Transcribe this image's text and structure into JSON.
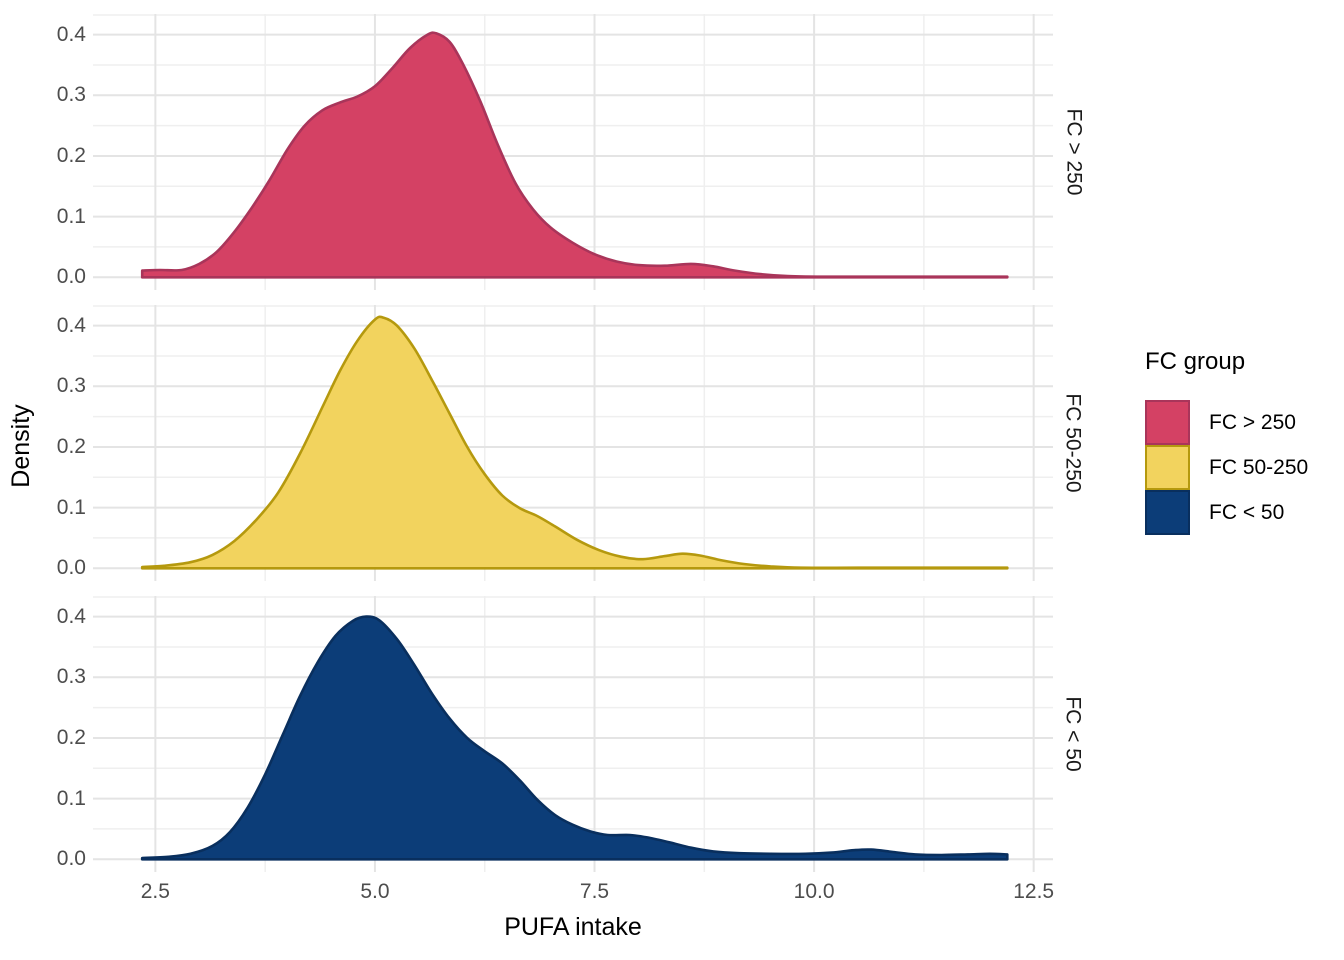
{
  "figure": {
    "y_axis_title": "Density",
    "x_axis_title": "PUFA intake",
    "x_tick_labels": [
      "2.5",
      "5.0",
      "7.5",
      "10.0",
      "12.5"
    ],
    "y_tick_labels": [
      "0.0",
      "0.1",
      "0.2",
      "0.3",
      "0.4"
    ]
  },
  "legend": {
    "title": "FC group",
    "items": [
      {
        "label": "FC > 250"
      },
      {
        "label": "FC 50-250"
      },
      {
        "label": "FC < 50"
      }
    ]
  },
  "chart_data": {
    "type": "area",
    "subtype": "faceted-density",
    "title": "",
    "xlabel": "PUFA intake",
    "ylabel": "Density",
    "xlim": [
      1.79,
      12.72
    ],
    "ylim": [
      -0.021,
      0.434
    ],
    "x_major_ticks": [
      2.5,
      5.0,
      7.5,
      10.0,
      12.5
    ],
    "x_minor_ticks": [
      3.75,
      6.25,
      8.75,
      11.25
    ],
    "y_major_ticks": [
      0.0,
      0.1,
      0.2,
      0.3,
      0.4
    ],
    "y_minor_ticks": [
      0.05,
      0.15,
      0.25,
      0.35
    ],
    "grid": true,
    "legend_position": "right",
    "facet_order_note": "one facet panel per series, top to bottom",
    "series": [
      {
        "name": "FC > 250",
        "fill": "#D44164",
        "stroke": "#A9355A",
        "points": [
          [
            2.35,
            0.011
          ],
          [
            2.55,
            0.012
          ],
          [
            2.8,
            0.012
          ],
          [
            3.0,
            0.022
          ],
          [
            3.2,
            0.042
          ],
          [
            3.4,
            0.075
          ],
          [
            3.6,
            0.115
          ],
          [
            3.8,
            0.16
          ],
          [
            4.0,
            0.21
          ],
          [
            4.2,
            0.25
          ],
          [
            4.4,
            0.275
          ],
          [
            4.6,
            0.288
          ],
          [
            4.8,
            0.298
          ],
          [
            5.0,
            0.315
          ],
          [
            5.2,
            0.345
          ],
          [
            5.4,
            0.378
          ],
          [
            5.6,
            0.4
          ],
          [
            5.7,
            0.402
          ],
          [
            5.85,
            0.388
          ],
          [
            6.0,
            0.352
          ],
          [
            6.2,
            0.29
          ],
          [
            6.4,
            0.218
          ],
          [
            6.6,
            0.155
          ],
          [
            6.8,
            0.112
          ],
          [
            7.0,
            0.082
          ],
          [
            7.25,
            0.057
          ],
          [
            7.5,
            0.038
          ],
          [
            7.75,
            0.026
          ],
          [
            8.0,
            0.02
          ],
          [
            8.3,
            0.019
          ],
          [
            8.6,
            0.022
          ],
          [
            8.85,
            0.018
          ],
          [
            9.1,
            0.011
          ],
          [
            9.4,
            0.005
          ],
          [
            9.7,
            0.002
          ],
          [
            10.2,
            0.001
          ],
          [
            11.0,
            0.001
          ],
          [
            12.2,
            0.001
          ]
        ]
      },
      {
        "name": "FC 50-250",
        "fill": "#F2D35E",
        "stroke": "#B5990E",
        "points": [
          [
            2.35,
            0.002
          ],
          [
            2.6,
            0.004
          ],
          [
            2.9,
            0.01
          ],
          [
            3.15,
            0.022
          ],
          [
            3.4,
            0.045
          ],
          [
            3.65,
            0.08
          ],
          [
            3.9,
            0.125
          ],
          [
            4.15,
            0.19
          ],
          [
            4.4,
            0.265
          ],
          [
            4.6,
            0.325
          ],
          [
            4.8,
            0.375
          ],
          [
            5.0,
            0.41
          ],
          [
            5.1,
            0.413
          ],
          [
            5.25,
            0.4
          ],
          [
            5.45,
            0.362
          ],
          [
            5.65,
            0.31
          ],
          [
            5.85,
            0.255
          ],
          [
            6.05,
            0.2
          ],
          [
            6.25,
            0.155
          ],
          [
            6.45,
            0.12
          ],
          [
            6.65,
            0.099
          ],
          [
            6.85,
            0.086
          ],
          [
            7.05,
            0.069
          ],
          [
            7.3,
            0.047
          ],
          [
            7.55,
            0.03
          ],
          [
            7.8,
            0.019
          ],
          [
            8.05,
            0.015
          ],
          [
            8.3,
            0.02
          ],
          [
            8.5,
            0.024
          ],
          [
            8.7,
            0.021
          ],
          [
            8.95,
            0.013
          ],
          [
            9.2,
            0.007
          ],
          [
            9.5,
            0.003
          ],
          [
            9.85,
            0.001
          ],
          [
            10.5,
            0.001
          ],
          [
            11.4,
            0.001
          ],
          [
            12.2,
            0.001
          ]
        ]
      },
      {
        "name": "FC < 50",
        "fill": "#0C3D78",
        "stroke": "#092F5E",
        "points": [
          [
            2.35,
            0.002
          ],
          [
            2.65,
            0.004
          ],
          [
            2.9,
            0.009
          ],
          [
            3.15,
            0.022
          ],
          [
            3.35,
            0.045
          ],
          [
            3.55,
            0.085
          ],
          [
            3.75,
            0.14
          ],
          [
            3.95,
            0.205
          ],
          [
            4.15,
            0.27
          ],
          [
            4.35,
            0.325
          ],
          [
            4.55,
            0.368
          ],
          [
            4.75,
            0.393
          ],
          [
            4.9,
            0.4
          ],
          [
            5.05,
            0.394
          ],
          [
            5.25,
            0.363
          ],
          [
            5.45,
            0.32
          ],
          [
            5.65,
            0.273
          ],
          [
            5.85,
            0.232
          ],
          [
            6.05,
            0.2
          ],
          [
            6.25,
            0.178
          ],
          [
            6.45,
            0.158
          ],
          [
            6.65,
            0.13
          ],
          [
            6.85,
            0.098
          ],
          [
            7.05,
            0.073
          ],
          [
            7.25,
            0.057
          ],
          [
            7.45,
            0.046
          ],
          [
            7.65,
            0.04
          ],
          [
            7.9,
            0.04
          ],
          [
            8.1,
            0.036
          ],
          [
            8.35,
            0.028
          ],
          [
            8.6,
            0.019
          ],
          [
            8.85,
            0.013
          ],
          [
            9.15,
            0.01
          ],
          [
            9.5,
            0.009
          ],
          [
            9.9,
            0.009
          ],
          [
            10.2,
            0.011
          ],
          [
            10.45,
            0.015
          ],
          [
            10.65,
            0.016
          ],
          [
            10.9,
            0.012
          ],
          [
            11.15,
            0.008
          ],
          [
            11.45,
            0.007
          ],
          [
            11.75,
            0.008
          ],
          [
            12.0,
            0.009
          ],
          [
            12.2,
            0.008
          ]
        ]
      }
    ],
    "style": {
      "grid_major_color": "#E4E4E4",
      "grid_minor_color": "#EFEFEF",
      "tick_label_color": "#4d4d4d",
      "strip_text_color": "#1a1a1a",
      "background": "#ffffff"
    }
  }
}
